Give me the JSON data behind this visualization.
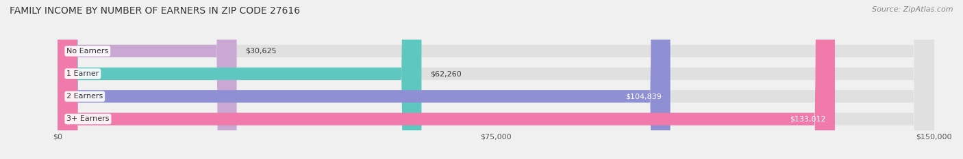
{
  "title": "FAMILY INCOME BY NUMBER OF EARNERS IN ZIP CODE 27616",
  "source": "Source: ZipAtlas.com",
  "categories": [
    "No Earners",
    "1 Earner",
    "2 Earners",
    "3+ Earners"
  ],
  "values": [
    30625,
    62260,
    104839,
    133012
  ],
  "bar_colors": [
    "#c9a8d4",
    "#5ec8c0",
    "#8f8fd4",
    "#f07aaa"
  ],
  "max_value": 150000,
  "x_ticks": [
    0,
    75000,
    150000
  ],
  "x_tick_labels": [
    "$0",
    "$75,000",
    "$150,000"
  ],
  "bar_labels": [
    "$30,625",
    "$62,260",
    "$104,839",
    "$133,012"
  ],
  "background_color": "#f0f0f0",
  "title_fontsize": 10,
  "source_fontsize": 8,
  "tick_fontsize": 8,
  "bar_label_fontsize": 8,
  "category_fontsize": 8
}
